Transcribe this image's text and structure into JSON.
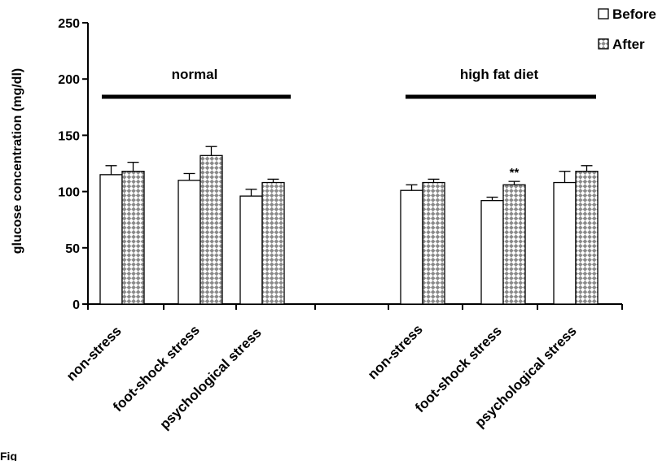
{
  "chart_data": {
    "type": "bar",
    "ylabel": "glucose concentration (mg/dl)",
    "ylim": [
      0,
      250
    ],
    "yticks": [
      0,
      50,
      100,
      150,
      200,
      250
    ],
    "categories": [
      "non-stress",
      "foot-shock stress",
      "psychological stress",
      "non-stress",
      "foot-shock stress",
      "psychological stress"
    ],
    "groups": [
      {
        "label": "normal",
        "category_indices": [
          0,
          1,
          2
        ]
      },
      {
        "label": "high fat diet",
        "category_indices": [
          3,
          4,
          5
        ]
      }
    ],
    "series": [
      {
        "name": "Before",
        "values": [
          115,
          110,
          96,
          101,
          92,
          108
        ],
        "errors": [
          8,
          6,
          6,
          5,
          3,
          10
        ],
        "color": "#ffffff"
      },
      {
        "name": "After",
        "values": [
          118,
          132,
          108,
          108,
          106,
          118
        ],
        "errors": [
          8,
          8,
          3,
          3,
          3,
          5
        ],
        "color": "#d0d0d0"
      }
    ],
    "annotations": [
      {
        "text": "**",
        "category_index": 4,
        "series": "After"
      }
    ],
    "legend": "top-right",
    "grid": false
  },
  "figure_label": "Fig"
}
